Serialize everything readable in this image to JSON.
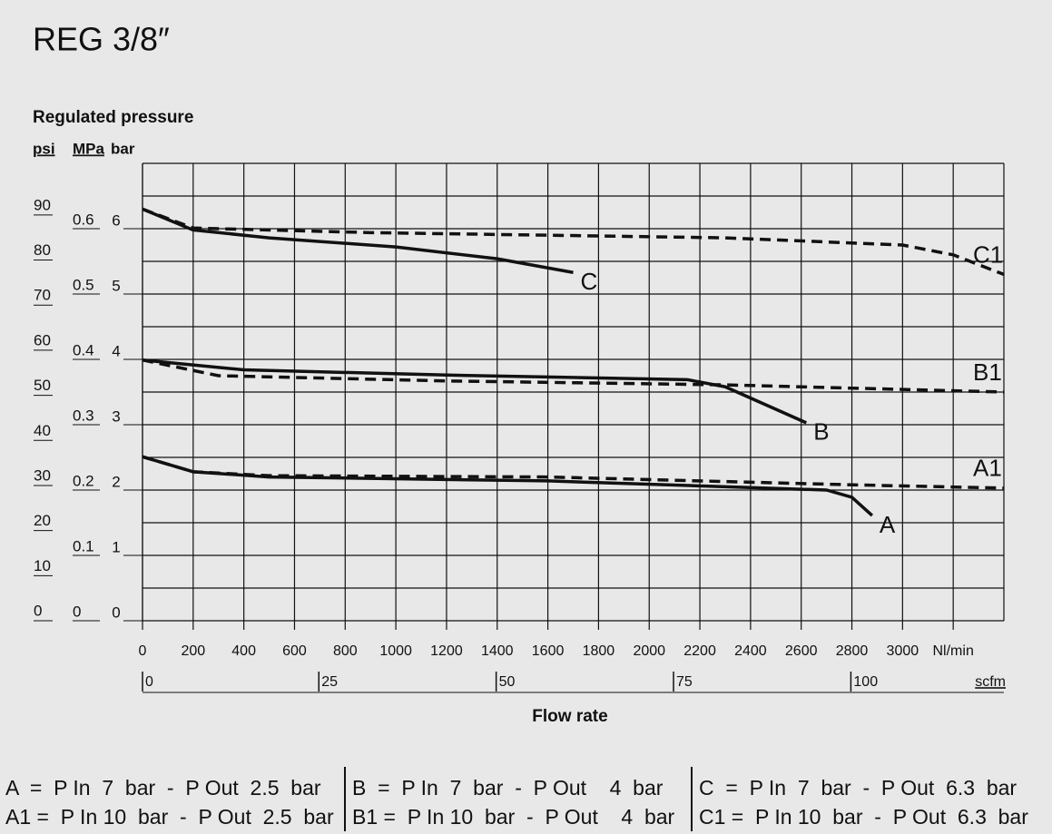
{
  "chart_data": {
    "type": "line",
    "title": "REG 3/8″",
    "y_title": "Regulated pressure",
    "y_units": [
      "psi",
      "MPa",
      "bar"
    ],
    "x_title": "Flow rate",
    "xlim": [
      0,
      3400
    ],
    "ylim": [
      0,
      7
    ],
    "xticks": [
      0,
      200,
      400,
      600,
      800,
      1000,
      1200,
      1400,
      1600,
      1800,
      2000,
      2200,
      2400,
      2600,
      2800,
      3000,
      {
        "value": 3200,
        "label": "Nl/min"
      }
    ],
    "x2ticks": [
      {
        "value": 0,
        "label": "0"
      },
      {
        "value": 696,
        "label": "25"
      },
      {
        "value": 1396,
        "label": "50"
      },
      {
        "value": 2096,
        "label": "75"
      },
      {
        "value": 2796,
        "label": "100"
      }
    ],
    "x2_unit": "scfm",
    "yticks": [
      0,
      1,
      2,
      3,
      4,
      5,
      6
    ],
    "y_mpa_ticks": [
      {
        "value": 0,
        "label": "0"
      },
      {
        "value": 1,
        "label": "0.1"
      },
      {
        "value": 2,
        "label": "0.2"
      },
      {
        "value": 3,
        "label": "0.3"
      },
      {
        "value": 4,
        "label": "0.4"
      },
      {
        "value": 5,
        "label": "0.5"
      },
      {
        "value": 6,
        "label": "0.6"
      }
    ],
    "y_psi_ticks": [
      {
        "value": 0,
        "label": "0"
      },
      {
        "value": 0.69,
        "label": "10"
      },
      {
        "value": 1.38,
        "label": "20"
      },
      {
        "value": 2.07,
        "label": "30"
      },
      {
        "value": 2.76,
        "label": "40"
      },
      {
        "value": 3.45,
        "label": "50"
      },
      {
        "value": 4.14,
        "label": "60"
      },
      {
        "value": 4.83,
        "label": "70"
      },
      {
        "value": 5.52,
        "label": "80"
      },
      {
        "value": 6.21,
        "label": "90"
      }
    ],
    "grid": true,
    "series": [
      {
        "name": "A",
        "color": "#111111",
        "dashed": false,
        "x": [
          0,
          200,
          500,
          1600,
          2700,
          2800,
          2880
        ],
        "values": [
          2.51,
          2.28,
          2.2,
          2.14,
          2.0,
          1.89,
          1.61
        ]
      },
      {
        "name": "A1",
        "color": "#111111",
        "dashed": true,
        "x": [
          0,
          200,
          500,
          1600,
          2800,
          3400
        ],
        "values": [
          2.51,
          2.28,
          2.22,
          2.2,
          2.08,
          2.03
        ]
      },
      {
        "name": "B",
        "color": "#111111",
        "dashed": false,
        "x": [
          0,
          400,
          1200,
          2150,
          2300,
          2620
        ],
        "values": [
          3.99,
          3.84,
          3.76,
          3.69,
          3.58,
          3.03
        ]
      },
      {
        "name": "B1",
        "color": "#111111",
        "dashed": true,
        "x": [
          0,
          300,
          1200,
          2300,
          3400
        ],
        "values": [
          3.99,
          3.75,
          3.67,
          3.61,
          3.5
        ]
      },
      {
        "name": "C",
        "color": "#111111",
        "dashed": false,
        "x": [
          0,
          200,
          500,
          1000,
          1400,
          1700
        ],
        "values": [
          6.3,
          5.98,
          5.86,
          5.72,
          5.54,
          5.33
        ]
      },
      {
        "name": "C1",
        "color": "#111111",
        "dashed": true,
        "x": [
          0,
          200,
          900,
          2300,
          3000,
          3200,
          3400
        ],
        "values": [
          6.3,
          6.01,
          5.94,
          5.86,
          5.75,
          5.6,
          5.3
        ]
      }
    ],
    "notes": [
      [
        "A  =  P In  7  bar  -  P Out  2.5  bar",
        "B  =  P In  7  bar  -  P Out    4  bar",
        "C  =  P In  7  bar  -  P Out  6.3  bar"
      ],
      [
        "A1 =  P In 10  bar  -  P Out  2.5  bar",
        "B1 =  P In 10  bar  -  P Out    4  bar",
        "C1 =  P In 10  bar  -  P Out  6.3  bar"
      ]
    ]
  }
}
